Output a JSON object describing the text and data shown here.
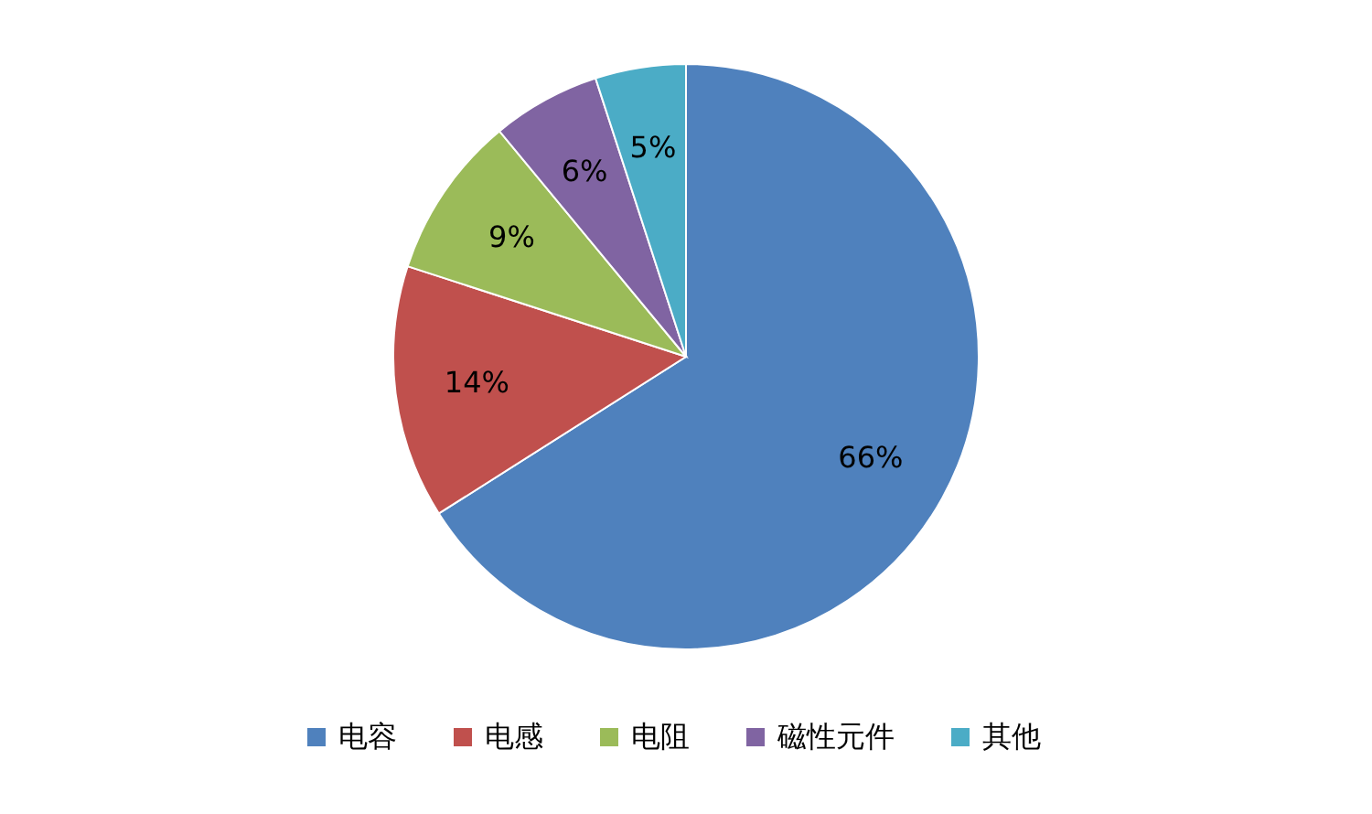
{
  "chart_data": {
    "type": "pie",
    "categories": [
      "电容",
      "电感",
      "电阻",
      "磁性元件",
      "其他"
    ],
    "values": [
      66,
      14,
      9,
      6,
      5
    ],
    "colors": [
      "#4f81bd",
      "#c0504d",
      "#9bbb59",
      "#8064a2",
      "#4bacc6"
    ],
    "value_labels": [
      "66%",
      "14%",
      "9%",
      "6%",
      "5%"
    ],
    "legend": "bottom"
  }
}
